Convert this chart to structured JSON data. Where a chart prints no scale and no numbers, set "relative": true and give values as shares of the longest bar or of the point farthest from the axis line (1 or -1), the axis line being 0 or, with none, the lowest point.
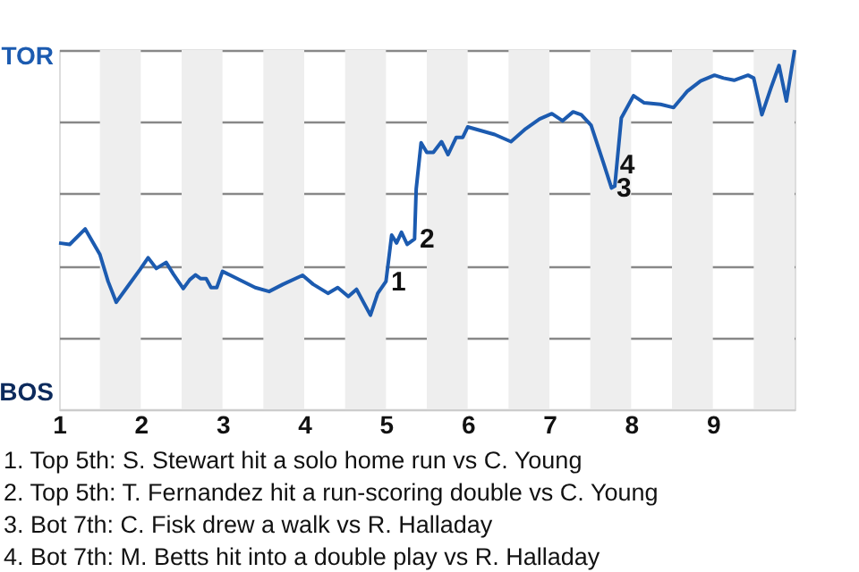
{
  "chart_data": {
    "type": "line",
    "relative": true,
    "x": [
      1.0,
      1.13,
      1.32,
      1.5,
      1.6,
      1.7,
      1.83,
      1.99,
      2.09,
      2.19,
      2.31,
      2.4,
      2.52,
      2.6,
      2.67,
      2.73,
      2.8,
      2.86,
      2.93,
      3.0,
      3.18,
      3.4,
      3.57,
      3.74,
      3.98,
      4.11,
      4.29,
      4.41,
      4.54,
      4.64,
      4.81,
      4.9,
      5.0,
      5.07,
      5.13,
      5.19,
      5.26,
      5.35,
      5.37,
      5.43,
      5.5,
      5.58,
      5.68,
      5.76,
      5.86,
      5.94,
      6.0,
      6.33,
      6.53,
      6.71,
      6.88,
      7.03,
      7.16,
      7.29,
      7.39,
      7.51,
      7.66,
      7.76,
      7.8,
      7.88,
      8.03,
      8.16,
      8.36,
      8.52,
      8.69,
      8.85,
      9.02,
      9.13,
      9.26,
      9.43,
      9.5,
      9.6,
      9.71,
      9.81,
      9.9,
      10.0
    ],
    "series": [
      {
        "color": "#1c5bb0",
        "values": [
          0.463,
          0.459,
          0.502,
          0.431,
          0.356,
          0.298,
          0.339,
          0.389,
          0.422,
          0.392,
          0.409,
          0.376,
          0.336,
          0.361,
          0.374,
          0.364,
          0.364,
          0.339,
          0.339,
          0.384,
          0.364,
          0.339,
          0.328,
          0.348,
          0.373,
          0.348,
          0.323,
          0.339,
          0.314,
          0.334,
          0.262,
          0.323,
          0.356,
          0.485,
          0.463,
          0.493,
          0.459,
          0.474,
          0.613,
          0.742,
          0.715,
          0.715,
          0.745,
          0.709,
          0.757,
          0.757,
          0.786,
          0.765,
          0.745,
          0.781,
          0.808,
          0.823,
          0.803,
          0.828,
          0.82,
          0.791,
          0.687,
          0.616,
          0.621,
          0.811,
          0.873,
          0.853,
          0.849,
          0.84,
          0.886,
          0.914,
          0.93,
          0.922,
          0.916,
          0.93,
          0.922,
          0.82,
          0.894,
          0.957,
          0.858,
          1
        ]
      }
    ],
    "xlim": [
      1,
      10
    ],
    "xticks": [
      1,
      2,
      3,
      4,
      5,
      6,
      7,
      8,
      9
    ],
    "grid": "y",
    "marker": "none",
    "line_style": "solid",
    "bands": [
      {
        "axis": "x",
        "from": 1.5,
        "to": 2,
        "color": "#eeeeee"
      },
      {
        "axis": "x",
        "from": 2.5,
        "to": 3,
        "color": "#eeeeee"
      },
      {
        "axis": "x",
        "from": 3.5,
        "to": 4,
        "color": "#eeeeee"
      },
      {
        "axis": "x",
        "from": 4.5,
        "to": 5,
        "color": "#eeeeee"
      },
      {
        "axis": "x",
        "from": 5.5,
        "to": 6,
        "color": "#eeeeee"
      },
      {
        "axis": "x",
        "from": 6.5,
        "to": 7,
        "color": "#eeeeee"
      },
      {
        "axis": "x",
        "from": 7.5,
        "to": 8,
        "color": "#eeeeee"
      },
      {
        "axis": "x",
        "from": 8.5,
        "to": 9,
        "color": "#eeeeee"
      },
      {
        "axis": "x",
        "from": 9.5,
        "to": 10,
        "color": "#eeeeee"
      }
    ],
    "annotations": [
      "TOR",
      "BOS",
      {
        "text": "1",
        "x": 5.0,
        "y": 0.356
      },
      {
        "text": "2",
        "x": 5.35,
        "y": 0.474
      },
      {
        "text": "3",
        "x": 7.76,
        "y": 0.616
      },
      {
        "text": "4",
        "x": 7.8,
        "y": 0.621
      },
      "1. Top 5th: S. Stewart hit a solo home run vs C. Young",
      "2. Top 5th: T. Fernandez hit a run-scoring double vs C. Young",
      "3. Bot 7th: C. Fisk drew a walk vs R. Halladay",
      "4. Bot 7th: M. Betts hit into a double play vs R. Halladay"
    ]
  }
}
